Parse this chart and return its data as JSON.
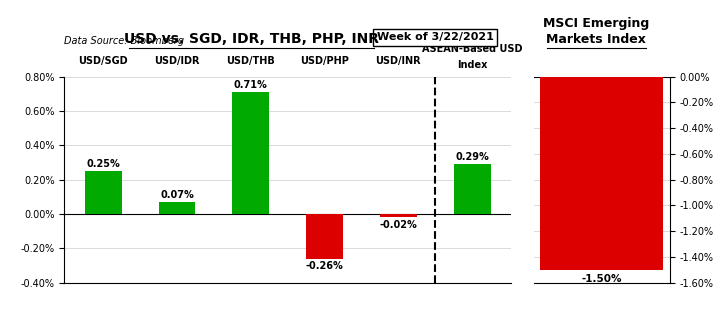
{
  "left_categories": [
    "USD/SGD",
    "USD/IDR",
    "USD/THB",
    "USD/PHP",
    "USD/INR",
    "ASEAN-Based USD\nIndex"
  ],
  "left_values": [
    0.25,
    0.07,
    0.71,
    -0.26,
    -0.02,
    0.29
  ],
  "left_colors": [
    "#00aa00",
    "#00aa00",
    "#00aa00",
    "#dd0000",
    "#dd0000",
    "#00aa00"
  ],
  "left_labels": [
    "0.25%",
    "0.07%",
    "0.71%",
    "-0.26%",
    "-0.02%",
    "0.29%"
  ],
  "left_ylim": [
    -0.4,
    0.8
  ],
  "left_yticks": [
    -0.4,
    -0.2,
    0.0,
    0.2,
    0.4,
    0.6,
    0.8
  ],
  "left_ytick_labels": [
    "-0.40%",
    "-0.20%",
    "0.00%",
    "0.20%",
    "0.40%",
    "0.60%",
    "0.80%"
  ],
  "right_values": [
    -1.5
  ],
  "right_colors": [
    "#dd0000"
  ],
  "right_labels": [
    "-1.50%"
  ],
  "right_ylim": [
    -1.6,
    0.0
  ],
  "right_yticks": [
    0.0,
    -0.2,
    -0.4,
    -0.6,
    -0.8,
    -1.0,
    -1.2,
    -1.4,
    -1.6
  ],
  "right_ytick_labels": [
    "0.00%",
    "-0.20%",
    "-0.40%",
    "-0.60%",
    "-0.80%",
    "-1.00%",
    "-1.20%",
    "-1.40%",
    "-1.60%"
  ],
  "main_title": "USD vs. SGD, IDR, THB, PHP, INR",
  "week_label": "Week of 3/22/2021",
  "data_source": "Data Source: Bloomberg",
  "right_title": "MSCI Emerging\nMarkets Index",
  "dashed_line_x": 4.5,
  "bg_color": "#ffffff",
  "bar_width": 0.5
}
